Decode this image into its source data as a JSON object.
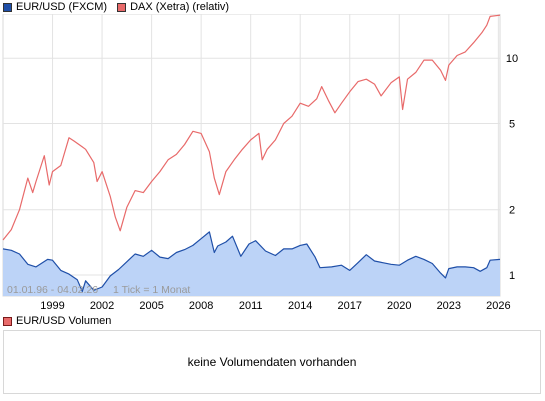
{
  "legend": {
    "series1": {
      "label": "EUR/USD (FXCM)",
      "color": "#1f4fa8"
    },
    "series2": {
      "label": "DAX (Xetra) (relativ)",
      "color": "#e86a6a"
    }
  },
  "volume": {
    "legend_label": "EUR/USD Volumen",
    "message": "keine Volumendaten vorhanden"
  },
  "chart_data": {
    "type": "line",
    "yscale": "log",
    "ylim": [
      0.8,
      16
    ],
    "xlim": [
      1996.0,
      2026.1
    ],
    "grid": true,
    "date_range_label": "01.01.96 - 04.02.26",
    "tick_info_label": "1 Tick = 1 Monat",
    "x_tick_labels": [
      "1999",
      "2002",
      "2005",
      "2008",
      "2011",
      "2014",
      "2017",
      "2020",
      "2023",
      "2026"
    ],
    "y_tick_labels": [
      "1",
      "2",
      "5",
      "10"
    ],
    "series": [
      {
        "name": "EUR/USD (FXCM)",
        "color": "#1f4fa8",
        "fill": "#bcd3f7",
        "points": [
          [
            1996.0,
            1.32
          ],
          [
            1996.5,
            1.3
          ],
          [
            1997.0,
            1.25
          ],
          [
            1997.5,
            1.12
          ],
          [
            1998.0,
            1.09
          ],
          [
            1998.7,
            1.18
          ],
          [
            1999.0,
            1.17
          ],
          [
            1999.5,
            1.05
          ],
          [
            2000.0,
            1.01
          ],
          [
            2000.5,
            0.95
          ],
          [
            2000.8,
            0.84
          ],
          [
            2001.0,
            0.94
          ],
          [
            2001.5,
            0.85
          ],
          [
            2002.0,
            0.88
          ],
          [
            2002.5,
            0.99
          ],
          [
            2003.0,
            1.06
          ],
          [
            2003.5,
            1.15
          ],
          [
            2004.0,
            1.25
          ],
          [
            2004.5,
            1.22
          ],
          [
            2005.0,
            1.3
          ],
          [
            2005.5,
            1.21
          ],
          [
            2006.0,
            1.19
          ],
          [
            2006.5,
            1.27
          ],
          [
            2007.0,
            1.31
          ],
          [
            2007.5,
            1.37
          ],
          [
            2008.0,
            1.47
          ],
          [
            2008.5,
            1.58
          ],
          [
            2008.8,
            1.27
          ],
          [
            2009.0,
            1.36
          ],
          [
            2009.5,
            1.42
          ],
          [
            2009.9,
            1.51
          ],
          [
            2010.4,
            1.22
          ],
          [
            2010.9,
            1.39
          ],
          [
            2011.3,
            1.44
          ],
          [
            2011.9,
            1.29
          ],
          [
            2012.5,
            1.23
          ],
          [
            2013.0,
            1.32
          ],
          [
            2013.5,
            1.32
          ],
          [
            2014.0,
            1.37
          ],
          [
            2014.4,
            1.39
          ],
          [
            2014.9,
            1.21
          ],
          [
            2015.2,
            1.08
          ],
          [
            2015.9,
            1.09
          ],
          [
            2016.5,
            1.11
          ],
          [
            2017.0,
            1.05
          ],
          [
            2017.5,
            1.14
          ],
          [
            2018.0,
            1.24
          ],
          [
            2018.5,
            1.16
          ],
          [
            2019.0,
            1.14
          ],
          [
            2019.5,
            1.12
          ],
          [
            2020.0,
            1.11
          ],
          [
            2020.5,
            1.17
          ],
          [
            2021.0,
            1.22
          ],
          [
            2021.5,
            1.18
          ],
          [
            2022.0,
            1.13
          ],
          [
            2022.5,
            1.02
          ],
          [
            2022.8,
            0.97
          ],
          [
            2023.0,
            1.07
          ],
          [
            2023.5,
            1.09
          ],
          [
            2024.0,
            1.09
          ],
          [
            2024.5,
            1.08
          ],
          [
            2024.9,
            1.04
          ],
          [
            2025.3,
            1.08
          ],
          [
            2025.5,
            1.17
          ],
          [
            2026.1,
            1.18
          ]
        ]
      },
      {
        "name": "DAX (Xetra) (relativ)",
        "color": "#e86a6a",
        "points": [
          [
            1996.0,
            1.45
          ],
          [
            1996.5,
            1.62
          ],
          [
            1997.0,
            2.0
          ],
          [
            1997.5,
            2.8
          ],
          [
            1997.8,
            2.4
          ],
          [
            1998.0,
            2.7
          ],
          [
            1998.5,
            3.55
          ],
          [
            1998.8,
            2.6
          ],
          [
            1999.0,
            3.0
          ],
          [
            1999.5,
            3.2
          ],
          [
            2000.0,
            4.3
          ],
          [
            2000.3,
            4.15
          ],
          [
            2000.8,
            3.9
          ],
          [
            2001.0,
            3.8
          ],
          [
            2001.5,
            3.3
          ],
          [
            2001.7,
            2.7
          ],
          [
            2002.0,
            3.0
          ],
          [
            2002.5,
            2.3
          ],
          [
            2002.8,
            1.85
          ],
          [
            2003.1,
            1.6
          ],
          [
            2003.5,
            2.05
          ],
          [
            2004.0,
            2.45
          ],
          [
            2004.5,
            2.4
          ],
          [
            2005.0,
            2.7
          ],
          [
            2005.5,
            3.0
          ],
          [
            2006.0,
            3.4
          ],
          [
            2006.5,
            3.6
          ],
          [
            2007.0,
            4.0
          ],
          [
            2007.5,
            4.6
          ],
          [
            2008.0,
            4.5
          ],
          [
            2008.5,
            3.7
          ],
          [
            2008.8,
            2.8
          ],
          [
            2009.1,
            2.35
          ],
          [
            2009.5,
            3.0
          ],
          [
            2010.0,
            3.4
          ],
          [
            2010.5,
            3.8
          ],
          [
            2011.0,
            4.2
          ],
          [
            2011.5,
            4.5
          ],
          [
            2011.7,
            3.4
          ],
          [
            2012.0,
            3.8
          ],
          [
            2012.5,
            4.2
          ],
          [
            2013.0,
            5.0
          ],
          [
            2013.5,
            5.4
          ],
          [
            2014.0,
            6.2
          ],
          [
            2014.5,
            6.0
          ],
          [
            2015.0,
            6.5
          ],
          [
            2015.3,
            7.4
          ],
          [
            2015.7,
            6.4
          ],
          [
            2016.1,
            5.6
          ],
          [
            2016.5,
            6.2
          ],
          [
            2017.0,
            7.0
          ],
          [
            2017.5,
            7.8
          ],
          [
            2018.0,
            8.0
          ],
          [
            2018.5,
            7.6
          ],
          [
            2018.9,
            6.7
          ],
          [
            2019.5,
            7.7
          ],
          [
            2020.0,
            8.2
          ],
          [
            2020.2,
            5.8
          ],
          [
            2020.5,
            8.0
          ],
          [
            2021.0,
            8.6
          ],
          [
            2021.5,
            9.8
          ],
          [
            2022.0,
            9.8
          ],
          [
            2022.5,
            8.8
          ],
          [
            2022.8,
            7.9
          ],
          [
            2023.0,
            9.3
          ],
          [
            2023.5,
            10.3
          ],
          [
            2024.0,
            10.7
          ],
          [
            2024.5,
            11.8
          ],
          [
            2025.0,
            13.1
          ],
          [
            2025.3,
            14.2
          ],
          [
            2025.5,
            15.6
          ],
          [
            2026.1,
            15.8
          ]
        ]
      }
    ]
  }
}
